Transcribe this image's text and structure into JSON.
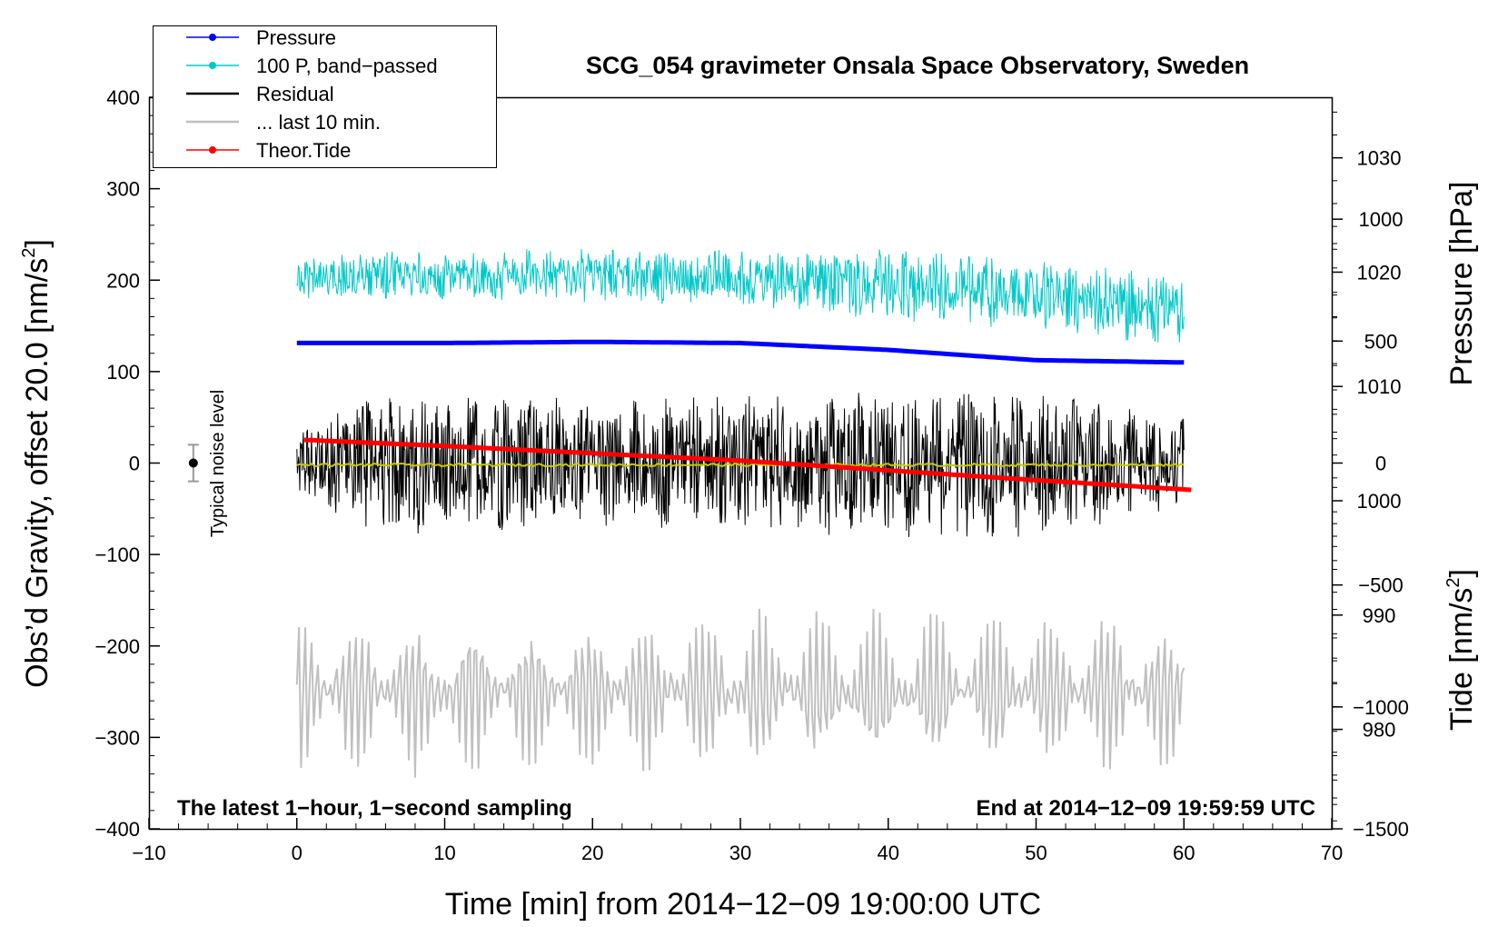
{
  "chart_data": {
    "type": "line",
    "title": "SCG_054 gravimeter Onsala Space Observatory, Sweden",
    "xlabel": "Time [min] from 2014−12−09 19:00:00 UTC",
    "ylabel_left_prefix": "Obs’d Gravity, offset 20.0 [nm/s",
    "ylabel_left_sup": "2",
    "ylabel_left_suffix": "]",
    "ylabel_right_pressure": "Pressure [hPa]",
    "ylabel_right_tide_prefix": "Tide [nm/s",
    "ylabel_right_tide_sup": "2",
    "ylabel_right_tide_suffix": "]",
    "xlim": [
      -10,
      70
    ],
    "ylim": [
      -400,
      400
    ],
    "pressure_lim": [
      1035.3,
      971.3
    ],
    "tide_lim": [
      1500,
      -1500
    ],
    "x_ticks": [
      {
        "v": -10,
        "label": "−10"
      },
      {
        "v": 0,
        "label": "0"
      },
      {
        "v": 10,
        "label": "10"
      },
      {
        "v": 20,
        "label": "20"
      },
      {
        "v": 30,
        "label": "30"
      },
      {
        "v": 40,
        "label": "40"
      },
      {
        "v": 50,
        "label": "50"
      },
      {
        "v": 60,
        "label": "60"
      },
      {
        "v": 70,
        "label": "70"
      }
    ],
    "y_ticks": [
      {
        "v": 400,
        "label": "400"
      },
      {
        "v": 300,
        "label": "300"
      },
      {
        "v": 200,
        "label": "200"
      },
      {
        "v": 100,
        "label": "100"
      },
      {
        "v": 0,
        "label": "0"
      },
      {
        "v": -100,
        "label": "−100"
      },
      {
        "v": -200,
        "label": "−200"
      },
      {
        "v": -300,
        "label": "−300"
      },
      {
        "v": -400,
        "label": "−400"
      }
    ],
    "pressure_ticks": [
      {
        "v": 1030,
        "label": "1030"
      },
      {
        "v": 1020,
        "label": "1020"
      },
      {
        "v": 1010,
        "label": "1010"
      },
      {
        "v": 1000,
        "label": "1000"
      },
      {
        "v": 990,
        "label": "990"
      },
      {
        "v": 980,
        "label": "980"
      }
    ],
    "tide_ticks": [
      {
        "v": 1000,
        "label": "1000"
      },
      {
        "v": 500,
        "label": "500"
      },
      {
        "v": 0,
        "label": "0"
      },
      {
        "v": -500,
        "label": "−500"
      },
      {
        "v": -1000,
        "label": "−1000"
      },
      {
        "v": -1500,
        "label": "−1500"
      }
    ],
    "legend": [
      {
        "label": "Pressure",
        "color": "#0000ff",
        "marker": true
      },
      {
        "label": "100 P, band−passed",
        "color": "#00c8c8",
        "marker": true
      },
      {
        "label": "Residual",
        "color": "#000000",
        "marker": false
      },
      {
        "label": "... last 10 min.",
        "color": "#c0c0c0",
        "marker": false
      },
      {
        "label": "Theor.Tide",
        "color": "#ff0000",
        "marker": true
      }
    ],
    "series": [
      {
        "name": "Pressure",
        "axis": "pressure",
        "color": "#0000ff",
        "x": [
          0,
          10,
          20,
          30,
          40,
          50,
          60
        ],
        "values": [
          1013.8,
          1013.8,
          1013.9,
          1013.8,
          1013.2,
          1012.3,
          1012.1
        ]
      },
      {
        "name": "100 P, band−passed",
        "axis": "gravity",
        "color": "#00c8c8",
        "x": [
          0,
          10,
          20,
          30,
          40,
          50,
          60
        ],
        "values": [
          205,
          205,
          205,
          203,
          195,
          185,
          165
        ],
        "amplitude": [
          [
            0,
            25
          ],
          [
            20,
            30
          ],
          [
            30,
            30
          ],
          [
            40,
            40
          ],
          [
            50,
            40
          ],
          [
            60,
            40
          ]
        ]
      },
      {
        "name": "Residual",
        "axis": "gravity",
        "color": "#000000",
        "x": [
          0,
          10,
          20,
          30,
          40,
          50,
          60
        ],
        "values": [
          0,
          0,
          0,
          0,
          0,
          0,
          0
        ],
        "amplitude": [
          [
            0,
            40
          ],
          [
            5,
            75
          ],
          [
            10,
            80
          ],
          [
            20,
            70
          ],
          [
            30,
            75
          ],
          [
            40,
            85
          ],
          [
            50,
            80
          ],
          [
            60,
            50
          ]
        ]
      },
      {
        "name": "Residual smoothed",
        "axis": "gravity",
        "color": "#c8c800",
        "x": [
          0,
          60
        ],
        "values": [
          -2,
          -2
        ]
      },
      {
        "name": "... last 10 min.",
        "axis": "gravity",
        "color": "#c0c0c0",
        "x": [
          0,
          60
        ],
        "values": [
          -250,
          -250
        ],
        "amplitude": [
          [
            0,
            85
          ],
          [
            60,
            85
          ]
        ]
      },
      {
        "name": "Theor.Tide",
        "axis": "tide",
        "color": "#ff0000",
        "x": [
          0.5,
          10,
          20,
          30,
          40,
          50,
          60.5
        ],
        "values": [
          95,
          70,
          40,
          10,
          -30,
          -70,
          -110
        ]
      }
    ],
    "noise_bar": {
      "label": "Typical noise level",
      "x": -7,
      "value": 0,
      "half_range": 20
    },
    "annotations": {
      "left": "The latest 1−hour, 1−second sampling",
      "right": "End at 2014−12−09 19:59:59 UTC"
    }
  }
}
